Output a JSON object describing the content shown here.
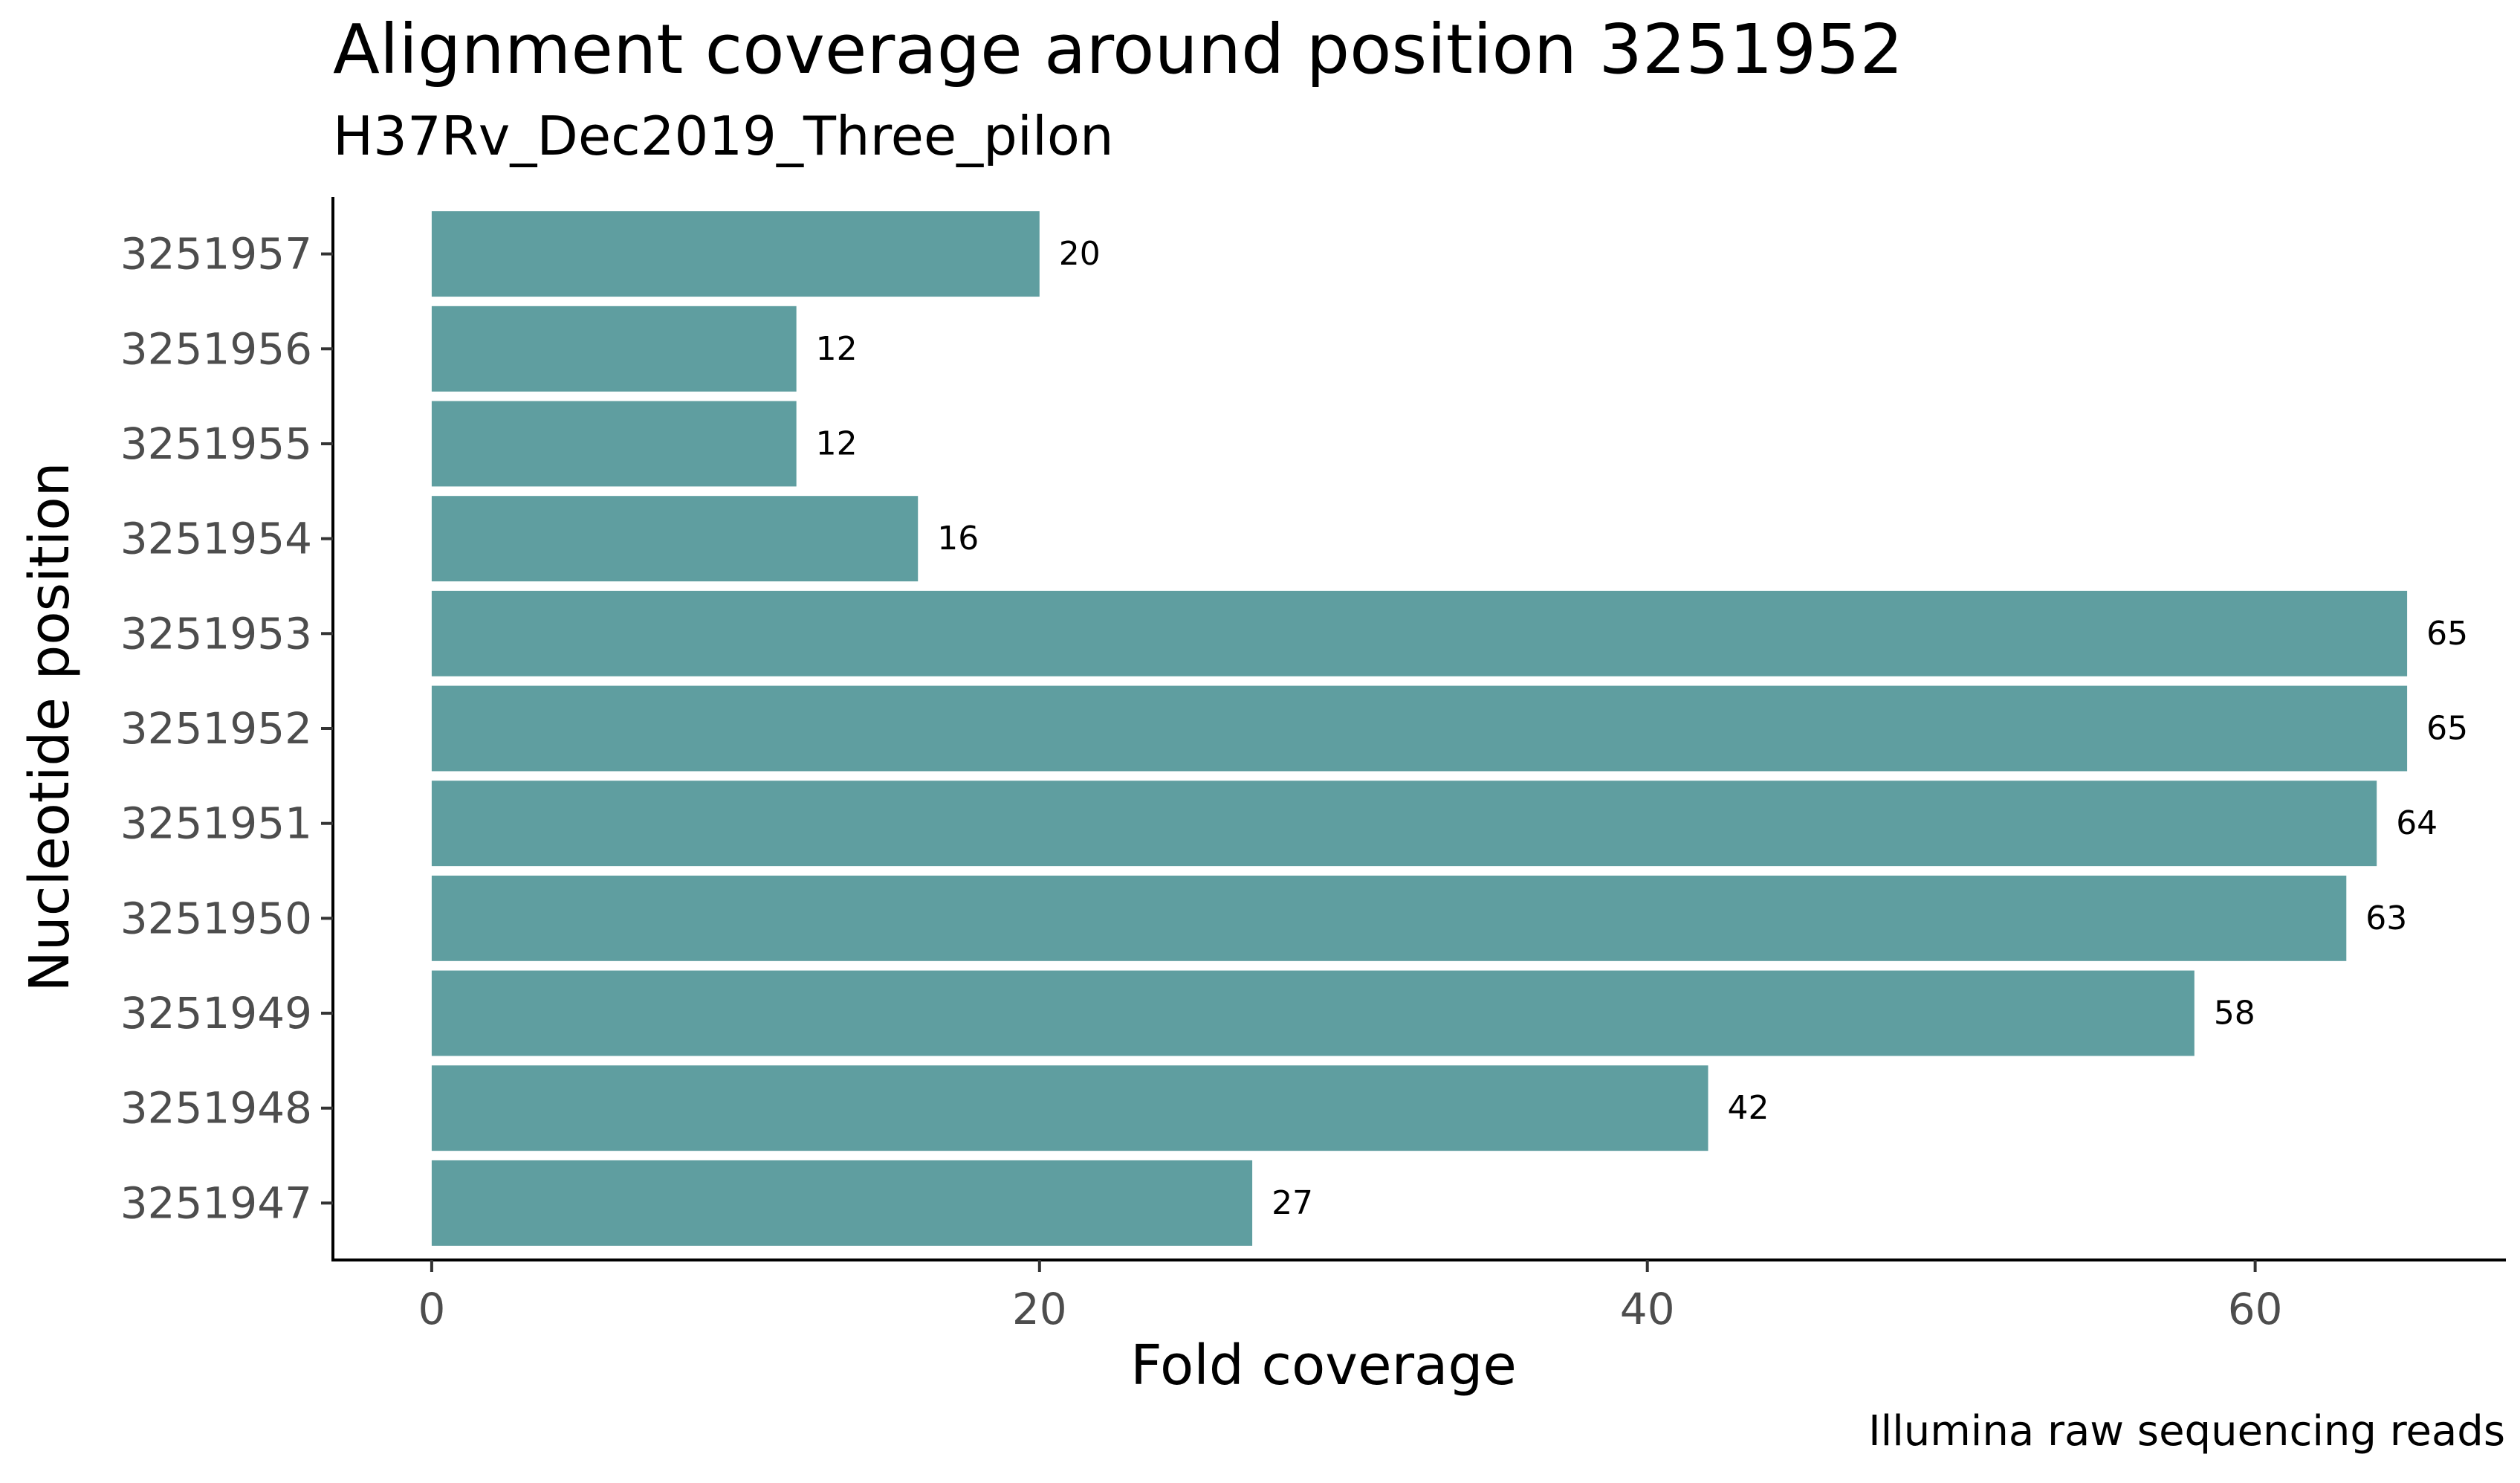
{
  "chart_data": {
    "type": "bar",
    "orientation": "horizontal",
    "title": "Alignment coverage around position 3251952",
    "subtitle": "H37Rv_Dec2019_Three_pilon",
    "caption": "Illumina raw sequencing reads",
    "xlabel": "Fold coverage",
    "ylabel": "Nucleotide position",
    "categories": [
      "3251957",
      "3251956",
      "3251955",
      "3251954",
      "3251953",
      "3251952",
      "3251951",
      "3251950",
      "3251949",
      "3251948",
      "3251947"
    ],
    "values": [
      20,
      12,
      12,
      16,
      65,
      65,
      64,
      63,
      58,
      42,
      27
    ],
    "data_labels": [
      "20",
      "12",
      "12",
      "16",
      "65",
      "65",
      "64",
      "63",
      "58",
      "42",
      "27"
    ],
    "xticks": [
      0,
      20,
      40,
      60
    ],
    "xtick_labels": [
      "0",
      "20",
      "40",
      "60"
    ],
    "xlim": [
      -3.25,
      68.25
    ],
    "grid": false,
    "bar_color": "#5f9ea0",
    "axis_color": "#000000",
    "tick_label_color": "#4d4d4d"
  }
}
